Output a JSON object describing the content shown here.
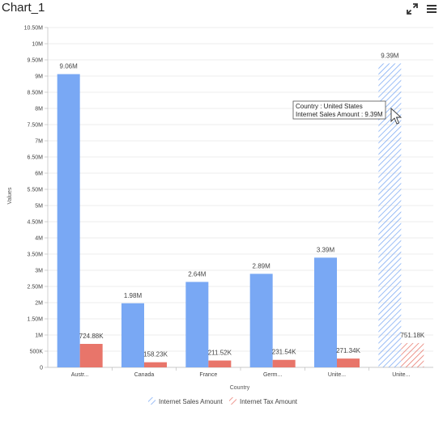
{
  "header": {
    "title": "Chart_1",
    "expand_icon": "expand-icon",
    "menu_icon": "hamburger-menu-icon"
  },
  "tooltip": {
    "line1": "Country : United States",
    "line2": "Internet Sales Amount : 9.39M"
  },
  "colors": {
    "sales": "#79a8f4",
    "tax": "#e8756a",
    "grid": "#e6e6e6",
    "axis": "#bdbdbd"
  },
  "chart_data": {
    "type": "bar",
    "xlabel": "Country",
    "ylabel": "Values",
    "ylim": [
      0,
      10500000
    ],
    "yticks": [
      0,
      500000,
      1000000,
      1500000,
      2000000,
      2500000,
      3000000,
      3500000,
      4000000,
      4500000,
      5000000,
      5500000,
      6000000,
      6500000,
      7000000,
      7500000,
      8000000,
      8500000,
      9000000,
      9500000,
      10000000,
      10500000
    ],
    "ytick_labels": [
      "0",
      "500K",
      "1M",
      "1.50M",
      "2M",
      "2.50M",
      "3M",
      "3.50M",
      "4M",
      "4.50M",
      "5M",
      "5.50M",
      "6M",
      "6.50M",
      "7M",
      "7.50M",
      "8M",
      "8.50M",
      "9M",
      "9.50M",
      "10M",
      "10.50M"
    ],
    "categories": [
      "Austr...",
      "Canada",
      "France",
      "Germ...",
      "Unite...",
      "Unite..."
    ],
    "series": [
      {
        "name": "Internet Sales Amount",
        "values": [
          9060000,
          1980000,
          2640000,
          2890000,
          3390000,
          9390000
        ],
        "labels": [
          "9.06M",
          "1.98M",
          "2.64M",
          "2.89M",
          "3.39M",
          "9.39M"
        ]
      },
      {
        "name": "Internet Tax Amount",
        "values": [
          724880,
          158230,
          211520,
          231540,
          271340,
          751180
        ],
        "labels": [
          "724.88K",
          "158.23K",
          "211.52K",
          "231.54K",
          "271.34K",
          "751.18K"
        ]
      }
    ],
    "highlighted_category": 5,
    "legend_position": "bottom",
    "grid": true
  }
}
